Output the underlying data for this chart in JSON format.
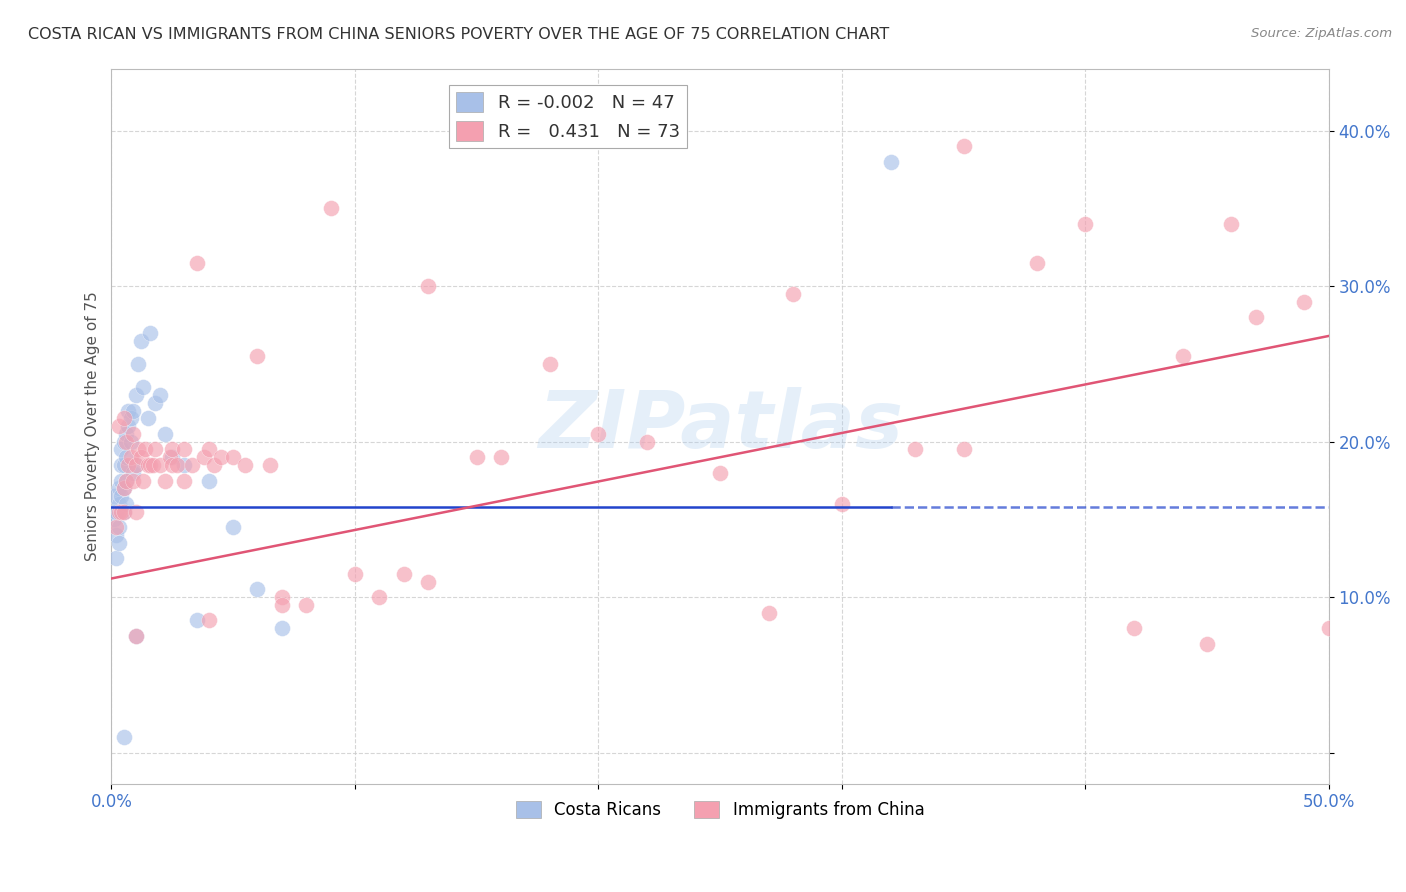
{
  "title": "COSTA RICAN VS IMMIGRANTS FROM CHINA SENIORS POVERTY OVER THE AGE OF 75 CORRELATION CHART",
  "source": "Source: ZipAtlas.com",
  "ylabel": "Seniors Poverty Over the Age of 75",
  "xlim": [
    0.0,
    0.5
  ],
  "ylim": [
    -0.02,
    0.44
  ],
  "blue_R": "-0.002",
  "blue_N": "47",
  "pink_R": "0.431",
  "pink_N": "73",
  "blue_color": "#A8C0E8",
  "pink_color": "#F4A0B0",
  "blue_line_color": "#2244CC",
  "pink_line_color": "#E05575",
  "grid_color": "#CCCCCC",
  "title_color": "#333333",
  "axis_label_color": "#4477CC",
  "watermark": "ZIPatlas",
  "blue_line_solid_end": 0.32,
  "blue_line_y": 0.158,
  "pink_line_x0": 0.0,
  "pink_line_y0": 0.112,
  "pink_line_x1": 0.5,
  "pink_line_y1": 0.268,
  "blue_x": [
    0.001,
    0.001,
    0.002,
    0.002,
    0.002,
    0.003,
    0.003,
    0.003,
    0.003,
    0.004,
    0.004,
    0.004,
    0.004,
    0.005,
    0.005,
    0.005,
    0.005,
    0.006,
    0.006,
    0.006,
    0.006,
    0.007,
    0.007,
    0.008,
    0.008,
    0.009,
    0.009,
    0.01,
    0.01,
    0.011,
    0.012,
    0.013,
    0.015,
    0.016,
    0.018,
    0.02,
    0.022,
    0.025,
    0.03,
    0.035,
    0.04,
    0.05,
    0.06,
    0.07,
    0.32,
    0.01,
    0.005
  ],
  "blue_y": [
    0.165,
    0.15,
    0.14,
    0.125,
    0.155,
    0.17,
    0.16,
    0.145,
    0.135,
    0.195,
    0.185,
    0.175,
    0.165,
    0.2,
    0.185,
    0.17,
    0.155,
    0.205,
    0.19,
    0.175,
    0.16,
    0.21,
    0.22,
    0.215,
    0.2,
    0.22,
    0.18,
    0.23,
    0.185,
    0.25,
    0.265,
    0.235,
    0.215,
    0.27,
    0.225,
    0.23,
    0.205,
    0.19,
    0.185,
    0.085,
    0.175,
    0.145,
    0.105,
    0.08,
    0.38,
    0.075,
    0.01
  ],
  "pink_x": [
    0.002,
    0.003,
    0.003,
    0.004,
    0.005,
    0.005,
    0.005,
    0.006,
    0.006,
    0.007,
    0.008,
    0.009,
    0.009,
    0.01,
    0.01,
    0.011,
    0.012,
    0.013,
    0.014,
    0.015,
    0.016,
    0.017,
    0.018,
    0.02,
    0.022,
    0.024,
    0.025,
    0.025,
    0.027,
    0.03,
    0.03,
    0.033,
    0.035,
    0.038,
    0.04,
    0.042,
    0.045,
    0.05,
    0.055,
    0.06,
    0.065,
    0.07,
    0.08,
    0.09,
    0.1,
    0.11,
    0.12,
    0.13,
    0.15,
    0.16,
    0.18,
    0.2,
    0.22,
    0.25,
    0.27,
    0.3,
    0.33,
    0.35,
    0.38,
    0.4,
    0.42,
    0.44,
    0.45,
    0.46,
    0.47,
    0.49,
    0.5,
    0.35,
    0.28,
    0.13,
    0.07,
    0.04,
    0.01
  ],
  "pink_y": [
    0.145,
    0.155,
    0.21,
    0.155,
    0.17,
    0.155,
    0.215,
    0.175,
    0.2,
    0.185,
    0.19,
    0.205,
    0.175,
    0.185,
    0.155,
    0.195,
    0.19,
    0.175,
    0.195,
    0.185,
    0.185,
    0.185,
    0.195,
    0.185,
    0.175,
    0.19,
    0.185,
    0.195,
    0.185,
    0.175,
    0.195,
    0.185,
    0.315,
    0.19,
    0.195,
    0.185,
    0.19,
    0.19,
    0.185,
    0.255,
    0.185,
    0.1,
    0.095,
    0.35,
    0.115,
    0.1,
    0.115,
    0.3,
    0.19,
    0.19,
    0.25,
    0.205,
    0.2,
    0.18,
    0.09,
    0.16,
    0.195,
    0.39,
    0.315,
    0.34,
    0.08,
    0.255,
    0.07,
    0.34,
    0.28,
    0.29,
    0.08,
    0.195,
    0.295,
    0.11,
    0.095,
    0.085,
    0.075
  ]
}
